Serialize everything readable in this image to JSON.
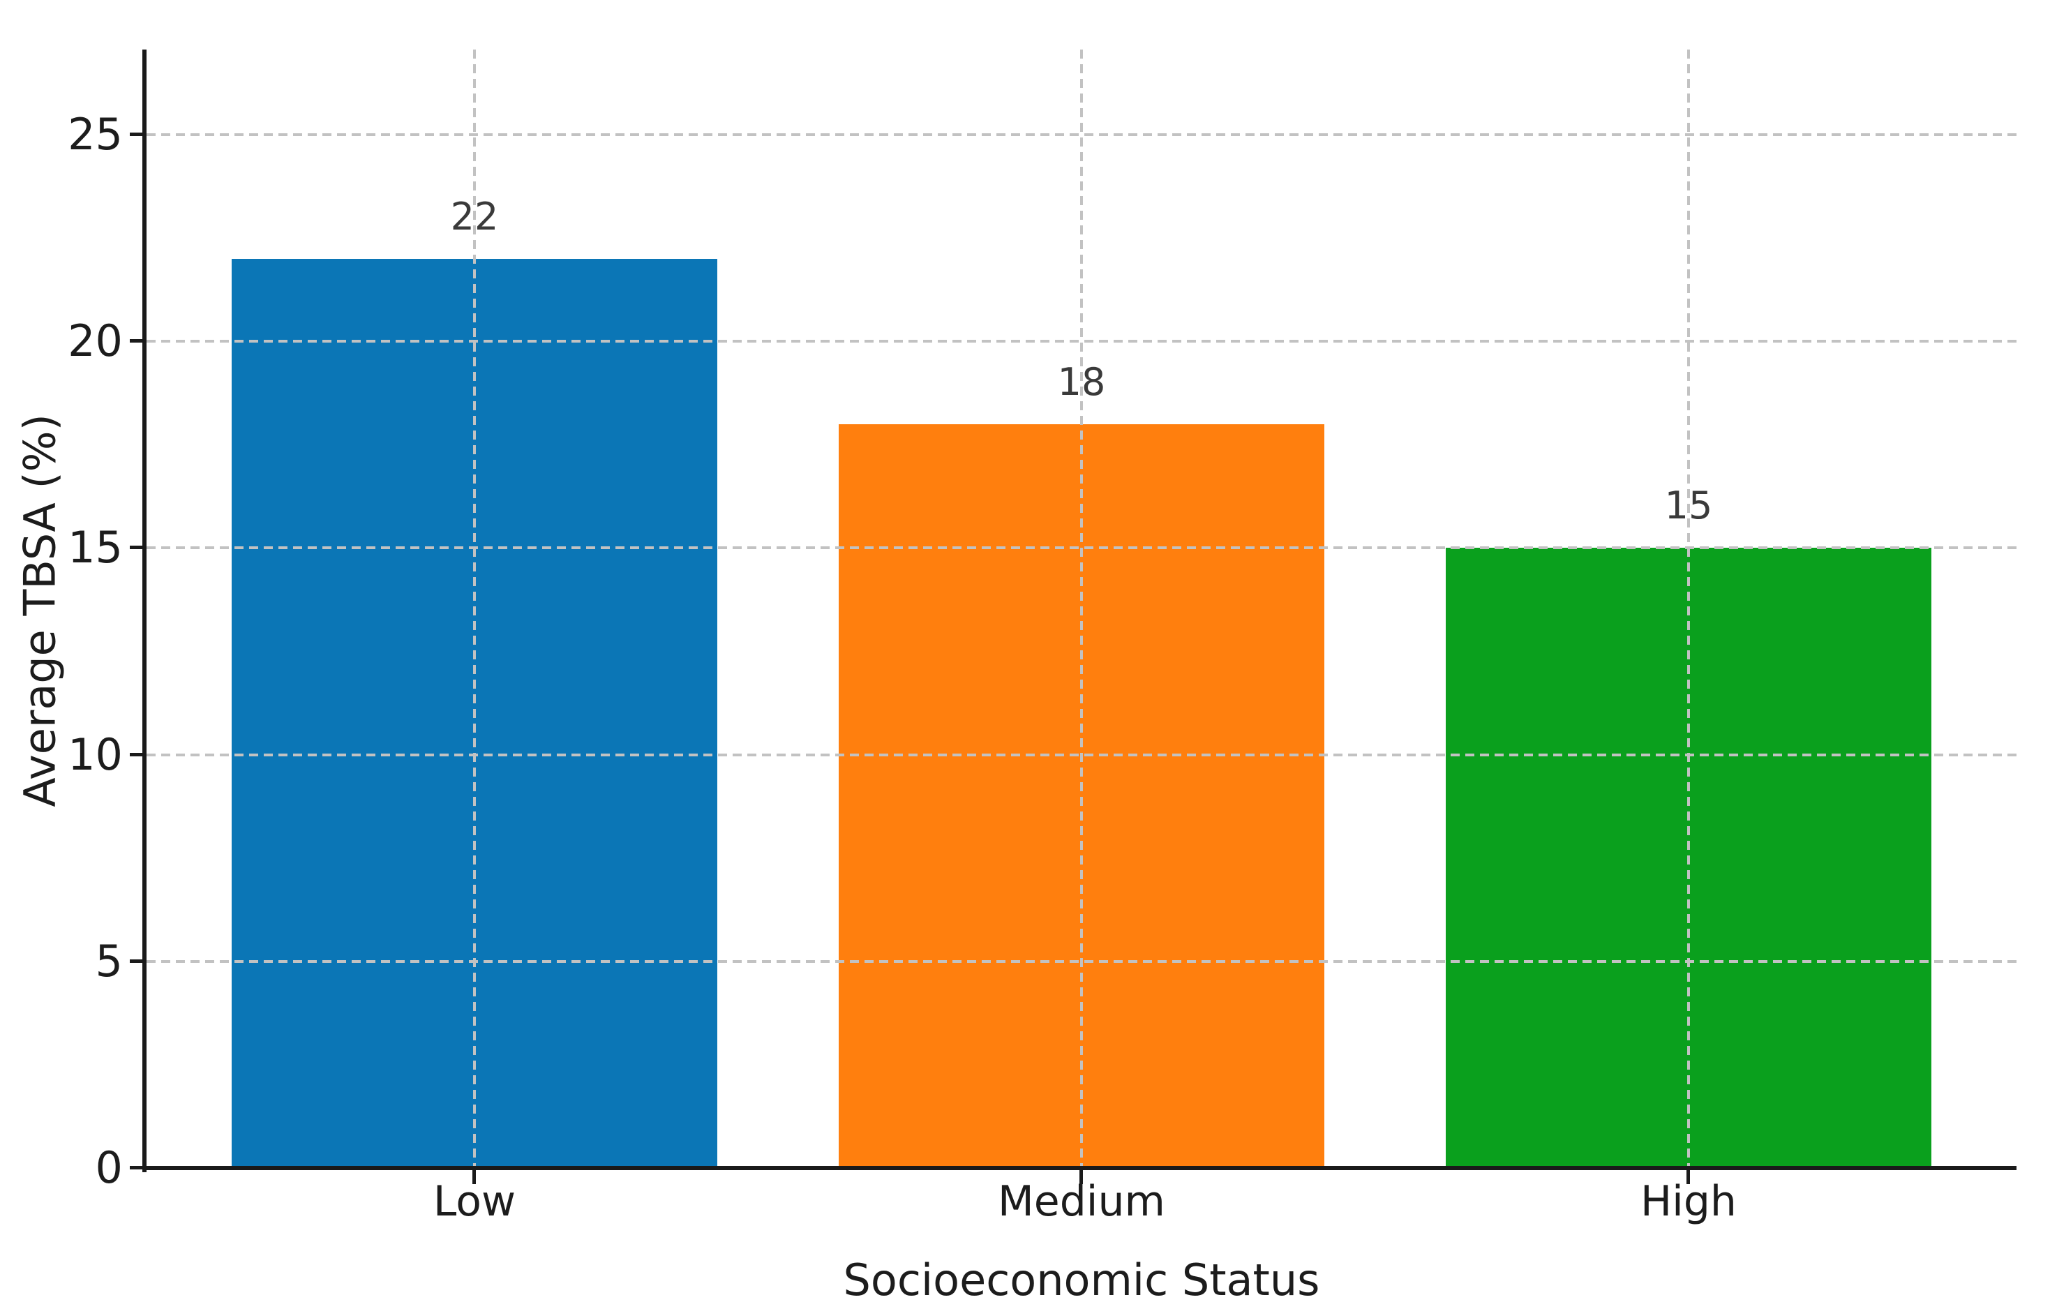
{
  "chart_data": {
    "type": "bar",
    "title": "",
    "xlabel": "Socioeconomic Status",
    "ylabel": "Average TBSA (%)",
    "categories": [
      "Low",
      "Medium",
      "High"
    ],
    "values": [
      22,
      18,
      15
    ],
    "value_labels": [
      "22",
      "18",
      "15"
    ],
    "bar_colors": [
      "#0b76b6",
      "#ff7f0e",
      "#0aa01d"
    ],
    "yticks": [
      0,
      5,
      10,
      15,
      20,
      25
    ],
    "ylim": [
      0,
      27.06
    ],
    "grid": "dashed gridlines on both axes, drawn over bars",
    "legend_position": "none"
  },
  "colors": {
    "background": "#ffffff",
    "grid": "#c2c2c2",
    "spine": "#1a1a1a",
    "tick_text": "#1c1c1c",
    "value_text": "#3a3a3a"
  }
}
